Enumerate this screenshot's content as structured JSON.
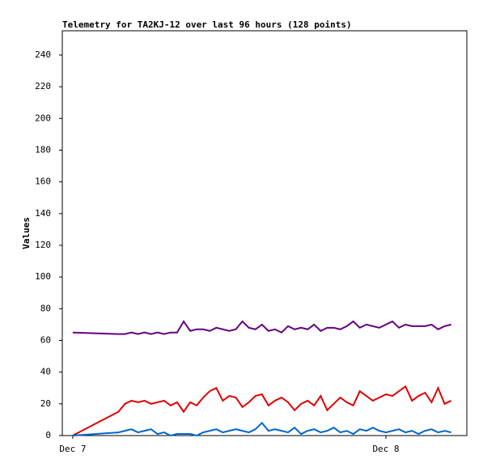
{
  "chart_data": {
    "type": "line",
    "title": "Telemetry for TA2KJ-12 over last 96 hours (128 points)",
    "y_label": "Values",
    "x": [
      0,
      3.5,
      4,
      4.5,
      5,
      5.5,
      6,
      6.5,
      7,
      7.5,
      8,
      8.5,
      9,
      9.5,
      10,
      10.5,
      11,
      11.5,
      12,
      12.5,
      13,
      13.5,
      14,
      14.5,
      15,
      15.5,
      16,
      16.5,
      17,
      17.5,
      18,
      18.5,
      19,
      19.5,
      20,
      20.5,
      21,
      21.5,
      22,
      22.5,
      23,
      23.5,
      24,
      24.5,
      25,
      25.5,
      26,
      26.5,
      27,
      27.5,
      28,
      28.5,
      29
    ],
    "series": [
      {
        "color": "#660080",
        "values": [
          65,
          64,
          64,
          65,
          64,
          65,
          64,
          65,
          64,
          65,
          65,
          72,
          66,
          67,
          67,
          66,
          68,
          67,
          66,
          67,
          72,
          68,
          67,
          70,
          66,
          67,
          65,
          69,
          67,
          68,
          67,
          70,
          66,
          68,
          68,
          67,
          69,
          72,
          68,
          70,
          69,
          68,
          70,
          72,
          68,
          70,
          69,
          69,
          69,
          70,
          67,
          69,
          70
        ]
      },
      {
        "color": "#e00000",
        "values": [
          0,
          15,
          20,
          22,
          21,
          22,
          20,
          21,
          22,
          19,
          21,
          15,
          21,
          19,
          24,
          28,
          30,
          22,
          25,
          24,
          18,
          21,
          25,
          26,
          19,
          22,
          24,
          21,
          16,
          20,
          22,
          19,
          25,
          16,
          20,
          24,
          21,
          19,
          28,
          25,
          22,
          24,
          26,
          25,
          28,
          31,
          22,
          25,
          27,
          21,
          30,
          20,
          22
        ]
      },
      {
        "color": "#0066cc",
        "values": [
          0,
          2,
          3,
          4,
          2,
          3,
          4,
          1,
          2,
          0,
          1,
          1,
          1,
          0,
          2,
          3,
          4,
          2,
          3,
          4,
          3,
          2,
          4,
          8,
          3,
          4,
          3,
          2,
          5,
          1,
          3,
          4,
          2,
          3,
          5,
          2,
          3,
          1,
          4,
          3,
          5,
          3,
          2,
          3,
          4,
          2,
          3,
          1,
          3,
          4,
          2,
          3,
          2
        ]
      }
    ],
    "xlim": [
      -0.8,
      30.2
    ],
    "xticks": [
      {
        "value": 0,
        "label": "Dec 7"
      },
      {
        "value": 24,
        "label": "Dec 8"
      }
    ],
    "ylim": [
      0,
      255.3
    ],
    "yticks": [
      0,
      20,
      40,
      60,
      80,
      100,
      120,
      140,
      160,
      180,
      200,
      220,
      240
    ]
  }
}
